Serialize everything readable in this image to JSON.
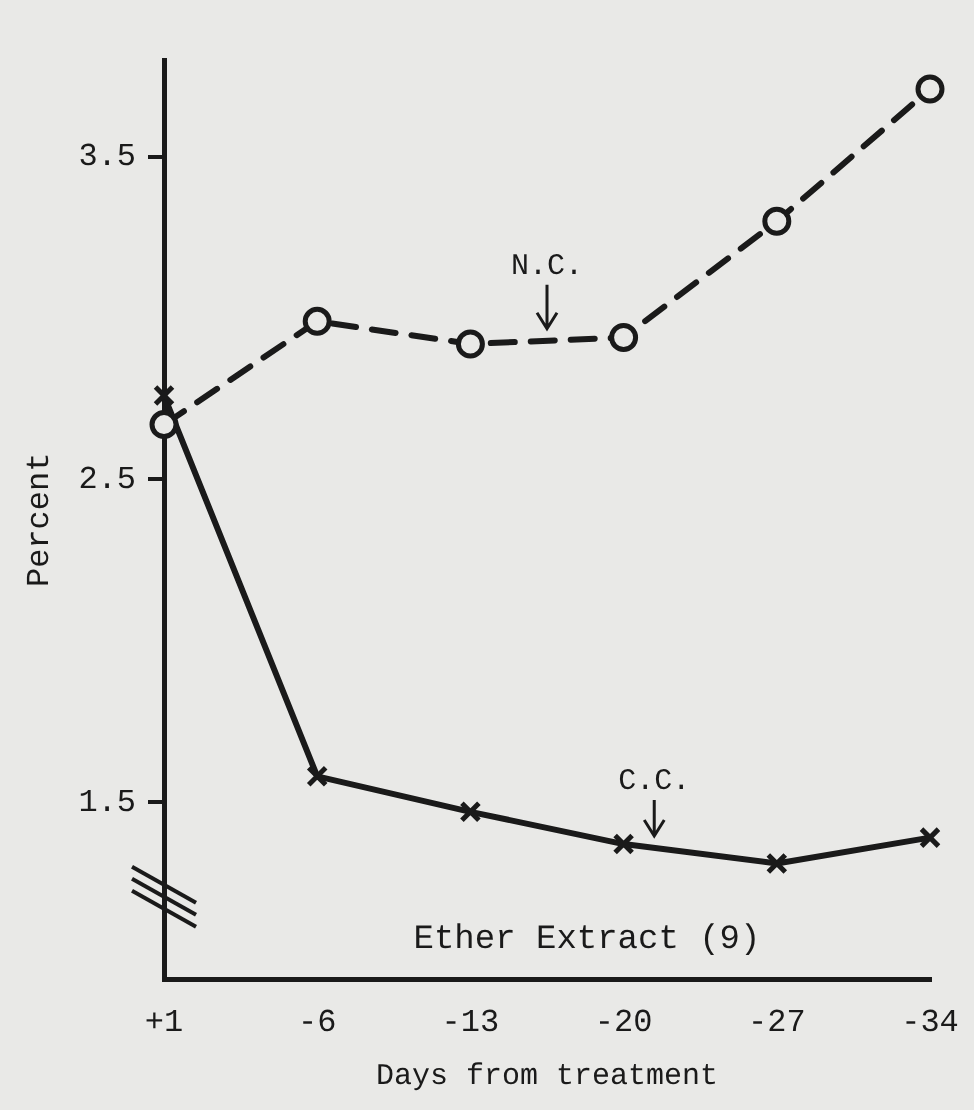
{
  "chart_data": {
    "type": "line",
    "xlabel": "Days from treatment",
    "ylabel": "Percent",
    "categories": [
      "+1",
      "-6",
      "-13",
      "-20",
      "-27",
      "-34"
    ],
    "series": [
      {
        "name": "N.C.",
        "color": "#1a1a1a",
        "values": [
          2.67,
          2.99,
          2.92,
          2.94,
          3.3,
          3.71
        ],
        "marker": "circle",
        "line_style": "dashed"
      },
      {
        "name": "C.C.",
        "color": "#1a1a1a",
        "values": [
          2.76,
          1.58,
          1.47,
          1.37,
          1.31,
          1.39
        ],
        "marker": "cross",
        "line_style": "solid"
      }
    ],
    "ylim": [
      0.95,
      3.8
    ],
    "yticks": [
      1.5,
      2.5,
      3.5
    ],
    "grid": false,
    "legend": false,
    "annotations": [
      "Ether Extract (9)"
    ]
  }
}
